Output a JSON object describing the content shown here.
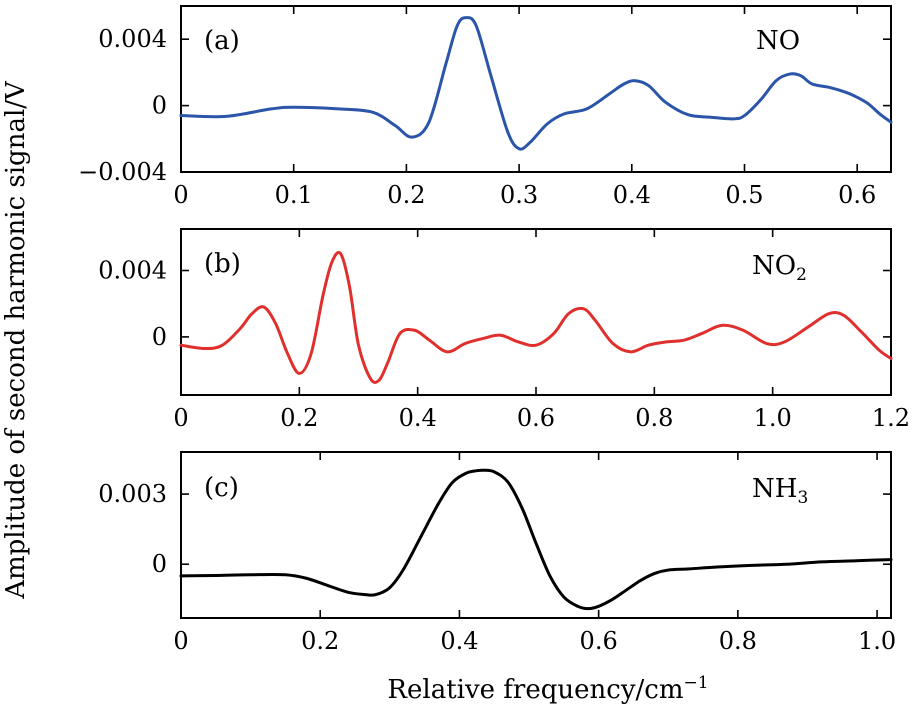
{
  "figure": {
    "ylabel": "Amplitude of second harmonic signal/V",
    "xlabel": "Relative frequency/cm",
    "xlabel_superscript": "−1"
  },
  "chart_data": [
    {
      "type": "line",
      "panel_label": "(a)",
      "species": "NO",
      "species_subscript": "",
      "color": "#2a55a8",
      "xlim": [
        0,
        0.63
      ],
      "ylim": [
        -0.004,
        0.006
      ],
      "xticks": [
        0,
        0.1,
        0.2,
        0.3,
        0.4,
        0.5,
        0.6
      ],
      "xtick_labels": [
        "0",
        "0.1",
        "0.2",
        "0.3",
        "0.4",
        "0.5",
        "0.6"
      ],
      "yticks": [
        -0.004,
        0,
        0.004
      ],
      "ytick_labels": [
        "−0.004",
        "0",
        "0.004"
      ],
      "series": [
        {
          "x": [
            0,
            0.04,
            0.08,
            0.1,
            0.14,
            0.17,
            0.19,
            0.205,
            0.22,
            0.235,
            0.245,
            0.253,
            0.262,
            0.275,
            0.29,
            0.3,
            0.31,
            0.325,
            0.34,
            0.36,
            0.38,
            0.393,
            0.403,
            0.415,
            0.43,
            0.45,
            0.47,
            0.49,
            0.5,
            0.515,
            0.528,
            0.54,
            0.55,
            0.56,
            0.575,
            0.59,
            0.6,
            0.61,
            0.62,
            0.63
          ],
          "y": [
            -0.0006,
            -0.00065,
            -0.0002,
            -0.0001,
            -0.0002,
            -0.0004,
            -0.0012,
            -0.0019,
            -0.001,
            0.0025,
            0.0048,
            0.0053,
            0.0048,
            0.0018,
            -0.0016,
            -0.0026,
            -0.0022,
            -0.0011,
            -0.0005,
            -0.0002,
            0.0007,
            0.0013,
            0.0015,
            0.0012,
            0.0002,
            -0.00055,
            -0.0007,
            -0.0008,
            -0.0006,
            0.0004,
            0.0015,
            0.0019,
            0.0018,
            0.0013,
            0.0011,
            0.0008,
            0.0005,
            0.0001,
            -0.0005,
            -0.001
          ]
        }
      ]
    },
    {
      "type": "line",
      "panel_label": "(b)",
      "species": "NO",
      "species_subscript": "2",
      "color": "#e0302d",
      "xlim": [
        0,
        1.2
      ],
      "ylim": [
        -0.0035,
        0.0065
      ],
      "xticks": [
        0,
        0.2,
        0.4,
        0.6,
        0.8,
        1.0,
        1.2
      ],
      "xtick_labels": [
        "0",
        "0.2",
        "0.4",
        "0.6",
        "0.8",
        "1.0",
        "1.2"
      ],
      "yticks": [
        0,
        0.004
      ],
      "ytick_labels": [
        "0",
        "0.004"
      ],
      "series": [
        {
          "x": [
            0,
            0.04,
            0.07,
            0.1,
            0.12,
            0.14,
            0.16,
            0.18,
            0.2,
            0.22,
            0.24,
            0.255,
            0.27,
            0.285,
            0.3,
            0.32,
            0.335,
            0.35,
            0.37,
            0.395,
            0.42,
            0.45,
            0.48,
            0.51,
            0.54,
            0.57,
            0.6,
            0.63,
            0.655,
            0.68,
            0.7,
            0.73,
            0.76,
            0.79,
            0.82,
            0.85,
            0.88,
            0.915,
            0.95,
            0.99,
            1.02,
            1.06,
            1.095,
            1.12,
            1.15,
            1.18,
            1.2
          ],
          "y": [
            -0.0005,
            -0.0007,
            -0.0005,
            0.0005,
            0.0014,
            0.0018,
            0.0008,
            -0.001,
            -0.0022,
            -0.001,
            0.0025,
            0.0045,
            0.005,
            0.003,
            -0.0005,
            -0.0025,
            -0.0026,
            -0.0015,
            0.0002,
            0.0004,
            -0.0002,
            -0.0009,
            -0.0004,
            -0.0001,
            0.0001,
            -0.0003,
            -0.0005,
            0.0002,
            0.0014,
            0.0017,
            0.001,
            -0.0004,
            -0.0009,
            -0.0005,
            -0.0003,
            -0.0002,
            0.0002,
            0.0007,
            0.0004,
            -0.0004,
            -0.0003,
            0.0006,
            0.0014,
            0.0013,
            0.0003,
            -0.0008,
            -0.0013
          ]
        }
      ]
    },
    {
      "type": "line",
      "panel_label": "(c)",
      "species": "NH",
      "species_subscript": "3",
      "color": "#000000",
      "xlim": [
        0,
        1.02
      ],
      "ylim": [
        -0.0023,
        0.0048
      ],
      "xticks": [
        0,
        0.2,
        0.4,
        0.6,
        0.8,
        1.0
      ],
      "xtick_labels": [
        "0",
        "0.2",
        "0.4",
        "0.6",
        "0.8",
        "1.0"
      ],
      "yticks": [
        0,
        0.003
      ],
      "ytick_labels": [
        "0",
        "0.003"
      ],
      "series": [
        {
          "x": [
            0,
            0.05,
            0.1,
            0.15,
            0.18,
            0.21,
            0.24,
            0.265,
            0.28,
            0.3,
            0.32,
            0.345,
            0.37,
            0.39,
            0.41,
            0.425,
            0.435,
            0.45,
            0.47,
            0.49,
            0.51,
            0.53,
            0.55,
            0.57,
            0.585,
            0.6,
            0.62,
            0.64,
            0.66,
            0.68,
            0.7,
            0.73,
            0.77,
            0.82,
            0.87,
            0.92,
            0.97,
            1.02
          ],
          "y": [
            -0.0005,
            -0.00048,
            -0.00045,
            -0.00045,
            -0.0006,
            -0.0009,
            -0.0012,
            -0.0013,
            -0.0013,
            -0.001,
            -0.0002,
            0.0012,
            0.0026,
            0.0035,
            0.0039,
            0.004,
            0.00402,
            0.00395,
            0.0035,
            0.0024,
            0.0009,
            -0.0005,
            -0.0014,
            -0.0018,
            -0.0019,
            -0.0018,
            -0.0015,
            -0.0011,
            -0.0007,
            -0.0004,
            -0.00025,
            -0.0002,
            -0.00012,
            -5e-05,
            0.0,
            0.0001,
            0.00015,
            0.0002
          ]
        }
      ]
    }
  ]
}
